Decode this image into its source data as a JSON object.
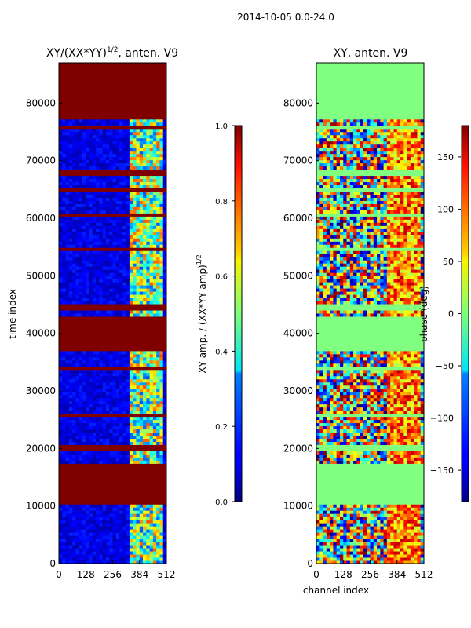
{
  "figure": {
    "suptitle": "2014-10-05 0.0-24.0"
  },
  "chart_data": [
    {
      "type": "heatmap",
      "title": "XY/(XX*YY)",
      "title_exponent": "1/2",
      "title_suffix": ", anten. V9",
      "xlabel": "",
      "ylabel": "time index",
      "x_ticks": [
        0,
        128,
        256,
        384,
        512
      ],
      "y_ticks": [
        0,
        10000,
        20000,
        30000,
        40000,
        50000,
        60000,
        70000,
        80000
      ],
      "xlim": [
        0,
        512
      ],
      "ylim": [
        0,
        87000
      ],
      "colorbar": {
        "label": "XY amp. / (XX*YY amp)",
        "label_exponent": "1/2",
        "min": 0.0,
        "max": 1.0,
        "ticks": [
          "0.0",
          "0.2",
          "0.4",
          "0.6",
          "0.8",
          "1.0"
        ],
        "colormap": "jet"
      },
      "description": "Mostly low (~0.05) background with high-amplitude (1.0) flagged horizontal bands; bright vertical channel structure between ~330 and ~500."
    },
    {
      "type": "heatmap",
      "title": "XY, anten. V9",
      "xlabel": "channel index",
      "ylabel": "",
      "x_ticks": [
        0,
        128,
        256,
        384,
        512
      ],
      "y_ticks": [
        0,
        10000,
        20000,
        30000,
        40000,
        50000,
        60000,
        70000,
        80000
      ],
      "xlim": [
        0,
        512
      ],
      "ylim": [
        0,
        87000
      ],
      "colorbar": {
        "label": "phase (deg)",
        "min": -180,
        "max": 180,
        "ticks": [
          "−150",
          "−100",
          "−50",
          "0",
          "50",
          "100",
          "150"
        ],
        "colormap": "jet"
      },
      "description": "Noisy phase map; flagged rows appear as constant 0° (green) bands, e.g. 37000–43000 and above 77000."
    }
  ]
}
